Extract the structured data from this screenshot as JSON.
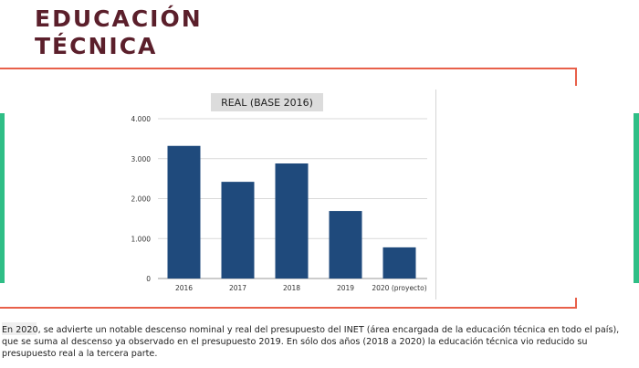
{
  "title": {
    "line1": "EDUCACIÓN",
    "line2": "TÉCNICA"
  },
  "colors": {
    "title": "#5b1f2b",
    "accent_red": "#e8604a",
    "accent_green": "#2fbe86",
    "bar": "#1f4a7c"
  },
  "chart_data": {
    "type": "bar",
    "title": "REAL (BASE 2016)",
    "categories": [
      "2016",
      "2017",
      "2018",
      "2019",
      "2020 (proyecto)"
    ],
    "values": [
      3320,
      2420,
      2880,
      1690,
      780
    ],
    "ylim": [
      0,
      4000
    ],
    "yticks": [
      0,
      1000,
      2000,
      3000,
      4000
    ],
    "ytick_labels": [
      "0",
      "1.000",
      "2.000",
      "3.000",
      "4.000"
    ],
    "grid": true,
    "xlabel": "",
    "ylabel": ""
  },
  "caption": "En 2020, se advierte un notable descenso nominal y real del presupuesto del INET (área encargada de la educación técnica en todo el país), que se suma al descenso ya observado en el presupuesto 2019.  En sólo dos años (2018 a 2020) la educación técnica vio reducido su presupuesto real a la tercera parte."
}
